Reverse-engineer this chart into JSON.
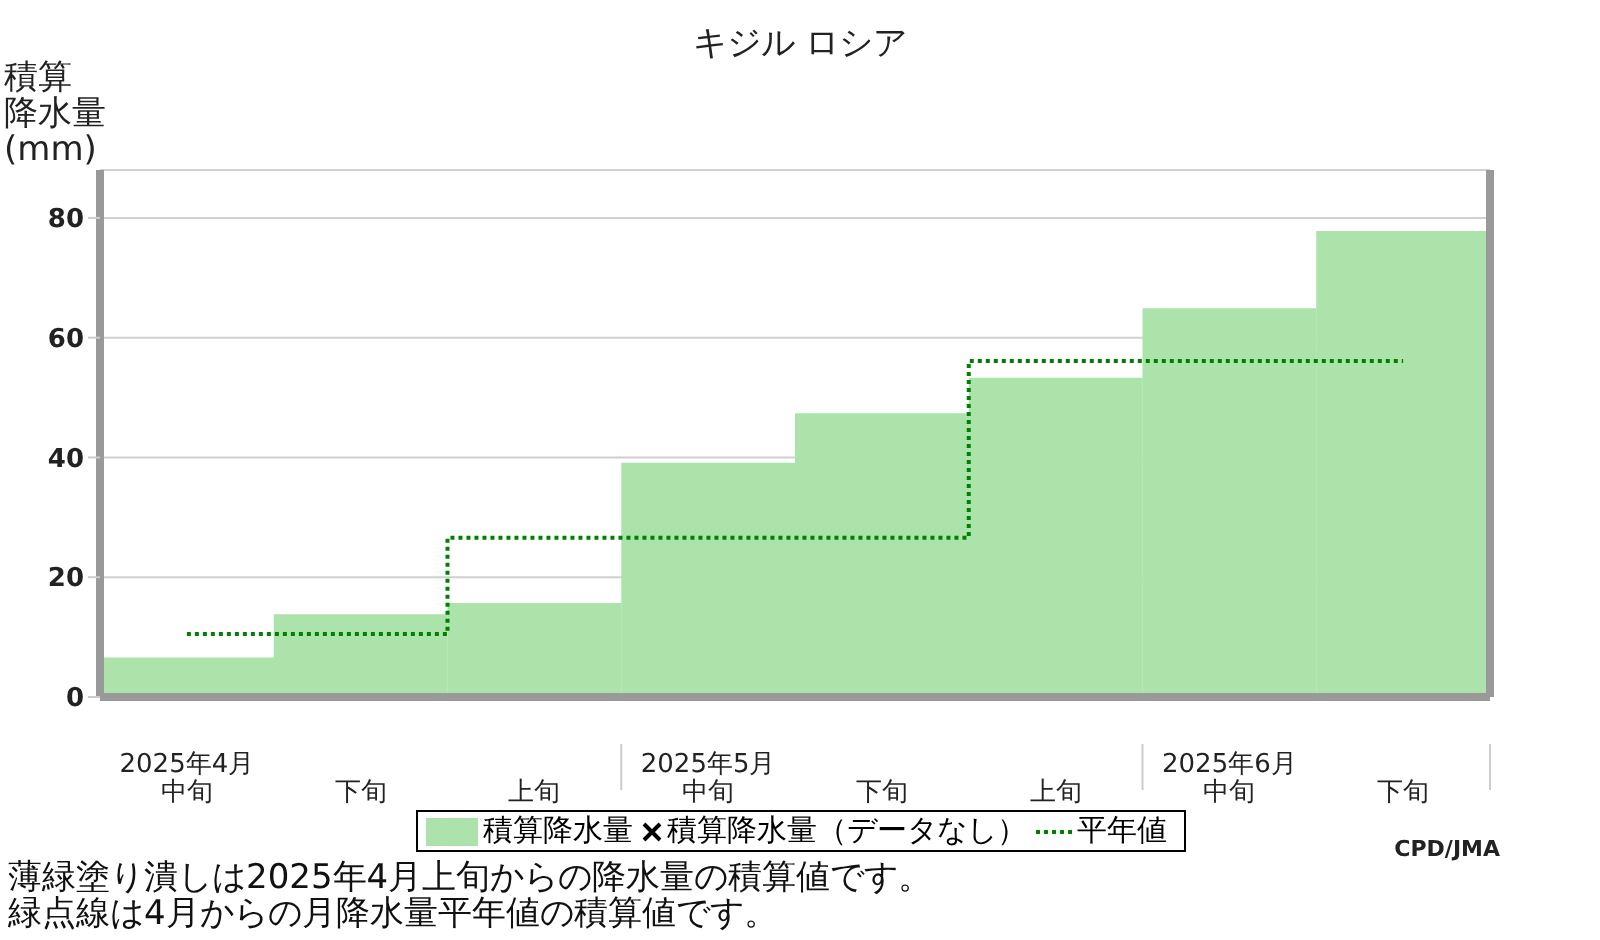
{
  "chart_data": {
    "type": "bar",
    "title": "キジル ロシア",
    "ylabel": "積算降水量(mm)",
    "categories": [
      "2025年4月中旬",
      "下旬",
      "上旬",
      "2025年5月中旬",
      "下旬",
      "上旬",
      "2025年6月中旬",
      "下旬"
    ],
    "series": [
      {
        "name": "積算降水量",
        "color": "#abe3aa",
        "values": [
          6.6,
          13.8,
          15.7,
          39.1,
          47.4,
          53.3,
          64.9,
          77.8
        ]
      },
      {
        "name": "積算降水量（データなし）",
        "type": "scatter",
        "marker": "cross",
        "color": "#000000",
        "values": [
          null,
          null,
          null,
          null,
          null,
          null,
          null,
          null
        ]
      },
      {
        "name": "平年値",
        "type": "step",
        "color": "#008000",
        "line_style": "dotted",
        "values": [
          10.5,
          10.5,
          26.6,
          26.6,
          26.6,
          56.1,
          56.1,
          56.1
        ]
      }
    ],
    "ylim": [
      0,
      88
    ],
    "yticks": [
      0,
      20,
      40,
      60,
      80
    ],
    "grid": "y",
    "legend": "bottom",
    "annotations": [
      "CPD/JMA",
      "薄緑塗り潰しは2025年4月上旬からの降水量の積算値です。",
      "緑点線は4月からの月降水量平年値の積算値です。"
    ]
  }
}
